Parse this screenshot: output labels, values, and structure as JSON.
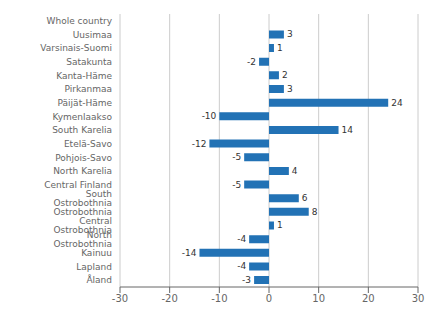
{
  "chart_data": {
    "type": "bar",
    "orientation": "horizontal",
    "categories": [
      "Whole country",
      "Uusimaa",
      "Varsinais-Suomi",
      "Satakunta",
      "Kanta-Häme",
      "Pirkanmaa",
      "Päijät-Häme",
      "Kymenlaakso",
      "South Karelia",
      "Etelä-Savo",
      "Pohjois-Savo",
      "North Karelia",
      "Central Finland",
      "South Ostrobothnia",
      "Ostrobothnia",
      "Central Ostrobothnia",
      "North Ostrobothnia",
      "Kainuu",
      "Lapland",
      "Åland"
    ],
    "values": [
      0,
      3,
      1,
      -2,
      2,
      3,
      24,
      -10,
      14,
      -12,
      -5,
      4,
      -5,
      6,
      8,
      1,
      -4,
      -14,
      -4,
      -3
    ],
    "color": "#2272b5",
    "xlim": [
      -30,
      30
    ],
    "xticks": [
      -30,
      -20,
      -10,
      0,
      10,
      20,
      30
    ],
    "grid": true,
    "data_labels": true
  }
}
